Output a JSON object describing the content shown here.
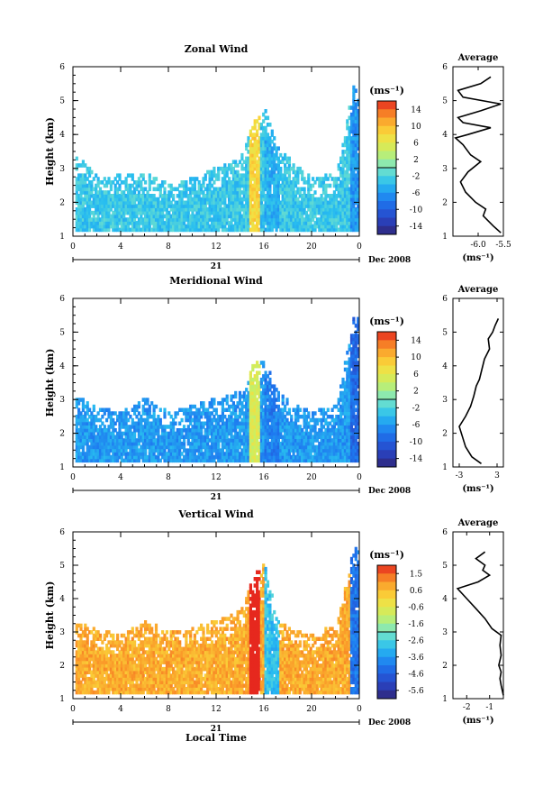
{
  "figure": {
    "date_label": "Dec 2008",
    "day_label": "21",
    "x_axis_title": "Local Time",
    "colorbar_unit": "(ms⁻¹)",
    "avg_xlabel": "(ms⁻¹)"
  },
  "chart_data": [
    {
      "type": "heatmap",
      "title": "Zonal Wind",
      "ylabel": "Height (km)",
      "y_ticks": [
        1,
        2,
        3,
        4,
        5,
        6
      ],
      "x_ticks": [
        "0",
        "4",
        "8",
        "12",
        "16",
        "20",
        "0"
      ],
      "xlim_hours": [
        0,
        24
      ],
      "ylim_km": [
        1,
        6
      ],
      "colorbar": {
        "ticks": [
          "14",
          "10",
          "6",
          "2",
          "-2",
          "-6",
          "-10",
          "-14"
        ],
        "range": [
          -16,
          16
        ]
      },
      "field_extent": [
        {
          "t": 0.5,
          "top": 3.3
        },
        {
          "t": 2,
          "top": 2.7
        },
        {
          "t": 4,
          "top": 2.8
        },
        {
          "t": 6,
          "top": 2.8
        },
        {
          "t": 8,
          "top": 2.5
        },
        {
          "t": 10,
          "top": 2.7
        },
        {
          "t": 12,
          "top": 3.0
        },
        {
          "t": 14,
          "top": 3.3
        },
        {
          "t": 15,
          "top": 4.3
        },
        {
          "t": 16,
          "top": 4.7
        },
        {
          "t": 17,
          "top": 3.6
        },
        {
          "t": 18.5,
          "top": 3.1
        },
        {
          "t": 20,
          "top": 2.7
        },
        {
          "t": 22,
          "top": 2.8
        },
        {
          "t": 23.4,
          "top": 5.4
        }
      ],
      "field_mean": -3,
      "average": {
        "title": "Average",
        "xlim": [
          -6.5,
          -5.5
        ],
        "x_ticks": [
          "-6.0",
          "-5.5"
        ],
        "y_ticks": [
          1,
          2,
          3,
          4,
          5,
          6
        ],
        "profile": [
          {
            "h": 1.1,
            "v": -5.55
          },
          {
            "h": 1.3,
            "v": -5.7
          },
          {
            "h": 1.6,
            "v": -5.9
          },
          {
            "h": 1.8,
            "v": -5.85
          },
          {
            "h": 2.0,
            "v": -6.05
          },
          {
            "h": 2.3,
            "v": -6.25
          },
          {
            "h": 2.6,
            "v": -6.35
          },
          {
            "h": 2.9,
            "v": -6.2
          },
          {
            "h": 3.2,
            "v": -5.95
          },
          {
            "h": 3.4,
            "v": -6.15
          },
          {
            "h": 3.7,
            "v": -6.3
          },
          {
            "h": 3.9,
            "v": -6.45
          },
          {
            "h": 4.0,
            "v": -6.2
          },
          {
            "h": 4.2,
            "v": -5.75
          },
          {
            "h": 4.35,
            "v": -6.3
          },
          {
            "h": 4.5,
            "v": -6.4
          },
          {
            "h": 4.7,
            "v": -5.95
          },
          {
            "h": 4.9,
            "v": -5.55
          },
          {
            "h": 5.1,
            "v": -6.3
          },
          {
            "h": 5.3,
            "v": -6.4
          },
          {
            "h": 5.5,
            "v": -5.95
          },
          {
            "h": 5.7,
            "v": -5.75
          }
        ]
      }
    },
    {
      "type": "heatmap",
      "title": "Meridional Wind",
      "ylabel": "Height (km)",
      "y_ticks": [
        1,
        2,
        3,
        4,
        5,
        6
      ],
      "x_ticks": [
        "0",
        "4",
        "8",
        "12",
        "16",
        "20",
        "0"
      ],
      "xlim_hours": [
        0,
        24
      ],
      "ylim_km": [
        1,
        6
      ],
      "colorbar": {
        "ticks": [
          "14",
          "10",
          "6",
          "2",
          "-2",
          "-6",
          "-10",
          "-14"
        ],
        "range": [
          -16,
          16
        ]
      },
      "field_extent": [
        {
          "t": 0.5,
          "top": 3.0
        },
        {
          "t": 2,
          "top": 2.7
        },
        {
          "t": 4,
          "top": 2.6
        },
        {
          "t": 6,
          "top": 3.0
        },
        {
          "t": 8,
          "top": 2.6
        },
        {
          "t": 10,
          "top": 2.8
        },
        {
          "t": 12,
          "top": 3.0
        },
        {
          "t": 14,
          "top": 3.2
        },
        {
          "t": 15,
          "top": 4.0
        },
        {
          "t": 16,
          "top": 4.2
        },
        {
          "t": 17,
          "top": 3.2
        },
        {
          "t": 18.5,
          "top": 2.8
        },
        {
          "t": 20,
          "top": 2.6
        },
        {
          "t": 22,
          "top": 2.8
        },
        {
          "t": 23.4,
          "top": 5.4
        }
      ],
      "field_mean": -6,
      "average": {
        "title": "Average",
        "xlim": [
          -4,
          4
        ],
        "x_ticks": [
          "-3",
          "3"
        ],
        "y_ticks": [
          1,
          2,
          3,
          4,
          5,
          6
        ],
        "profile": [
          {
            "h": 1.1,
            "v": 0.5
          },
          {
            "h": 1.3,
            "v": -1.0
          },
          {
            "h": 1.6,
            "v": -2.0
          },
          {
            "h": 1.9,
            "v": -2.5
          },
          {
            "h": 2.2,
            "v": -3.0
          },
          {
            "h": 2.5,
            "v": -2.0
          },
          {
            "h": 2.8,
            "v": -1.2
          },
          {
            "h": 3.1,
            "v": -0.7
          },
          {
            "h": 3.4,
            "v": -0.3
          },
          {
            "h": 3.6,
            "v": 0.2
          },
          {
            "h": 3.9,
            "v": 0.6
          },
          {
            "h": 4.2,
            "v": 1.0
          },
          {
            "h": 4.5,
            "v": 1.8
          },
          {
            "h": 4.8,
            "v": 1.6
          },
          {
            "h": 5.0,
            "v": 2.3
          },
          {
            "h": 5.2,
            "v": 2.7
          },
          {
            "h": 5.4,
            "v": 3.2
          }
        ]
      }
    },
    {
      "type": "heatmap",
      "title": "Vertical Wind",
      "ylabel": "Height (km)",
      "y_ticks": [
        1,
        2,
        3,
        4,
        5,
        6
      ],
      "x_ticks": [
        "0",
        "4",
        "8",
        "12",
        "16",
        "20",
        "0"
      ],
      "xlim_hours": [
        0,
        24
      ],
      "ylim_km": [
        1,
        6
      ],
      "xlabel": "Local Time",
      "colorbar": {
        "ticks": [
          "1.5",
          "0.6",
          "-0.6",
          "-1.6",
          "-2.6",
          "-3.6",
          "-4.6",
          "-5.6"
        ],
        "range": [
          -6.0,
          2.0
        ]
      },
      "field_extent": [
        {
          "t": 0.5,
          "top": 3.3
        },
        {
          "t": 2,
          "top": 3.0
        },
        {
          "t": 4,
          "top": 2.9
        },
        {
          "t": 6,
          "top": 3.3
        },
        {
          "t": 8,
          "top": 3.0
        },
        {
          "t": 10,
          "top": 3.1
        },
        {
          "t": 12,
          "top": 3.3
        },
        {
          "t": 14,
          "top": 3.6
        },
        {
          "t": 15,
          "top": 4.6
        },
        {
          "t": 16,
          "top": 5.1
        },
        {
          "t": 17,
          "top": 3.3
        },
        {
          "t": 18.5,
          "top": 3.0
        },
        {
          "t": 20,
          "top": 2.9
        },
        {
          "t": 22,
          "top": 3.2
        },
        {
          "t": 23.4,
          "top": 5.5
        }
      ],
      "field_mean": 0.7,
      "average": {
        "title": "Average",
        "xlim": [
          -2.6,
          -0.4
        ],
        "x_ticks": [
          "-2",
          "-1"
        ],
        "y_ticks": [
          1,
          2,
          3,
          4,
          5,
          6
        ],
        "profile": [
          {
            "h": 1.1,
            "v": -0.4
          },
          {
            "h": 1.4,
            "v": -0.5
          },
          {
            "h": 1.6,
            "v": -0.55
          },
          {
            "h": 1.8,
            "v": -0.5
          },
          {
            "h": 2.0,
            "v": -0.6
          },
          {
            "h": 2.3,
            "v": -0.5
          },
          {
            "h": 2.6,
            "v": -0.55
          },
          {
            "h": 2.9,
            "v": -0.5
          },
          {
            "h": 3.1,
            "v": -0.9
          },
          {
            "h": 3.4,
            "v": -1.2
          },
          {
            "h": 3.7,
            "v": -1.6
          },
          {
            "h": 4.0,
            "v": -2.0
          },
          {
            "h": 4.3,
            "v": -2.4
          },
          {
            "h": 4.5,
            "v": -1.5
          },
          {
            "h": 4.7,
            "v": -1.0
          },
          {
            "h": 4.85,
            "v": -1.3
          },
          {
            "h": 5.0,
            "v": -1.2
          },
          {
            "h": 5.2,
            "v": -1.6
          },
          {
            "h": 5.4,
            "v": -1.2
          }
        ]
      }
    }
  ]
}
